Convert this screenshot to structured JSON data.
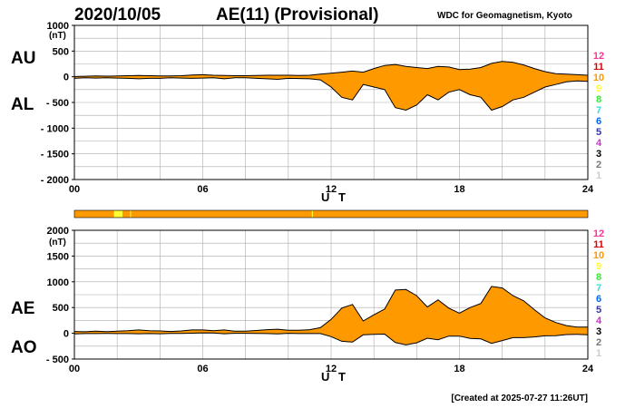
{
  "header": {
    "date": "2020/10/05",
    "title": "AE(11) (Provisional)",
    "source": "WDC for Geomagnetism, Kyoto"
  },
  "footer": {
    "created": "[Created at 2025-07-27 11:26UT]"
  },
  "colors": {
    "fill": "#ff9900",
    "line": "#000000",
    "grid": "#aaaaaa",
    "bar": "#ff9900",
    "bar_highlight": "#ffff33"
  },
  "station_scale": [
    {
      "label": "12",
      "color": "#ff3399"
    },
    {
      "label": "11",
      "color": "#dd0000"
    },
    {
      "label": "10",
      "color": "#ff9900"
    },
    {
      "label": "9",
      "color": "#ffff33"
    },
    {
      "label": "8",
      "color": "#33ee33"
    },
    {
      "label": "7",
      "color": "#33dddd"
    },
    {
      "label": "6",
      "color": "#0066ff"
    },
    {
      "label": "5",
      "color": "#3333aa"
    },
    {
      "label": "4",
      "color": "#cc33cc"
    },
    {
      "label": "3",
      "color": "#000000"
    },
    {
      "label": "2",
      "color": "#777777"
    },
    {
      "label": "1",
      "color": "#cccccc"
    }
  ],
  "chart_data": [
    {
      "type": "area",
      "upper_label": "AU",
      "lower_label": "AL",
      "unit": "(nT)",
      "xlabel": "U T",
      "xlim": [
        0,
        24
      ],
      "ylim": [
        -2000,
        1000
      ],
      "x_ticks": [
        "00",
        "06",
        "12",
        "18",
        "24"
      ],
      "y_ticks": [
        {
          "value": 1000,
          "label": "1000"
        },
        {
          "value": 500,
          "label": "500"
        },
        {
          "value": 0,
          "label": "0"
        },
        {
          "value": -500,
          "label": "- 500"
        },
        {
          "value": -1000,
          "label": "- 1000"
        },
        {
          "value": -1500,
          "label": "- 1500"
        },
        {
          "value": -2000,
          "label": "- 2000"
        }
      ],
      "grid": true,
      "series": [
        {
          "name": "AU",
          "x": [
            0,
            0.5,
            1,
            1.5,
            2,
            2.5,
            3,
            3.5,
            4,
            4.5,
            5,
            5.5,
            6,
            6.5,
            7,
            7.5,
            8,
            8.5,
            9,
            9.5,
            10,
            10.5,
            11,
            11.5,
            12,
            12.5,
            13,
            13.5,
            14,
            14.5,
            15,
            15.5,
            16,
            16.5,
            17,
            17.5,
            18,
            18.5,
            19,
            19.5,
            20,
            20.5,
            21,
            21.5,
            22,
            22.5,
            23,
            23.5,
            24
          ],
          "values": [
            5,
            10,
            15,
            12,
            15,
            20,
            25,
            20,
            15,
            15,
            20,
            35,
            40,
            30,
            25,
            20,
            20,
            25,
            30,
            30,
            30,
            25,
            30,
            50,
            70,
            90,
            110,
            90,
            160,
            220,
            240,
            200,
            180,
            160,
            200,
            190,
            140,
            150,
            180,
            260,
            300,
            280,
            230,
            160,
            100,
            60,
            50,
            40,
            30
          ]
        },
        {
          "name": "AL",
          "x": [
            0,
            0.5,
            1,
            1.5,
            2,
            2.5,
            3,
            3.5,
            4,
            4.5,
            5,
            5.5,
            6,
            6.5,
            7,
            7.5,
            8,
            8.5,
            9,
            9.5,
            10,
            10.5,
            11,
            11.5,
            12,
            12.5,
            13,
            13.5,
            14,
            14.5,
            15,
            15.5,
            16,
            16.5,
            17,
            17.5,
            18,
            18.5,
            19,
            19.5,
            20,
            20.5,
            21,
            21.5,
            22,
            22.5,
            23,
            23.5,
            24
          ],
          "values": [
            -30,
            -20,
            -25,
            -20,
            -25,
            -30,
            -40,
            -30,
            -30,
            -20,
            -25,
            -30,
            -25,
            -20,
            -40,
            -20,
            -20,
            -30,
            -40,
            -50,
            -30,
            -35,
            -40,
            -60,
            -200,
            -400,
            -450,
            -150,
            -200,
            -250,
            -600,
            -650,
            -550,
            -350,
            -450,
            -300,
            -250,
            -350,
            -400,
            -650,
            -580,
            -450,
            -400,
            -300,
            -200,
            -150,
            -100,
            -80,
            -90
          ]
        }
      ]
    },
    {
      "type": "area",
      "upper_label": "AE",
      "lower_label": "AO",
      "unit": "(nT)",
      "xlabel": "U T",
      "xlim": [
        0,
        24
      ],
      "ylim": [
        -500,
        2000
      ],
      "x_ticks": [
        "00",
        "06",
        "12",
        "18",
        "24"
      ],
      "y_ticks": [
        {
          "value": 2000,
          "label": "2000"
        },
        {
          "value": 1500,
          "label": "1500"
        },
        {
          "value": 1000,
          "label": "1000"
        },
        {
          "value": 500,
          "label": "500"
        },
        {
          "value": 0,
          "label": "0"
        },
        {
          "value": -500,
          "label": "- 500"
        }
      ],
      "grid": true,
      "series": [
        {
          "name": "AE",
          "x": [
            0,
            0.5,
            1,
            1.5,
            2,
            2.5,
            3,
            3.5,
            4,
            4.5,
            5,
            5.5,
            6,
            6.5,
            7,
            7.5,
            8,
            8.5,
            9,
            9.5,
            10,
            10.5,
            11,
            11.5,
            12,
            12.5,
            13,
            13.5,
            14,
            14.5,
            15,
            15.5,
            16,
            16.5,
            17,
            17.5,
            18,
            18.5,
            19,
            19.5,
            20,
            20.5,
            21,
            21.5,
            22,
            22.5,
            23,
            23.5,
            24
          ],
          "values": [
            35,
            30,
            40,
            32,
            40,
            50,
            65,
            50,
            45,
            35,
            45,
            65,
            65,
            50,
            65,
            40,
            40,
            55,
            70,
            80,
            60,
            60,
            70,
            110,
            270,
            490,
            560,
            240,
            360,
            470,
            840,
            850,
            730,
            510,
            650,
            490,
            390,
            500,
            580,
            910,
            880,
            730,
            630,
            460,
            300,
            210,
            150,
            120,
            120
          ]
        },
        {
          "name": "AO",
          "x": [
            0,
            0.5,
            1,
            1.5,
            2,
            2.5,
            3,
            3.5,
            4,
            4.5,
            5,
            5.5,
            6,
            6.5,
            7,
            7.5,
            8,
            8.5,
            9,
            9.5,
            10,
            10.5,
            11,
            11.5,
            12,
            12.5,
            13,
            13.5,
            14,
            14.5,
            15,
            15.5,
            16,
            16.5,
            17,
            17.5,
            18,
            18.5,
            19,
            19.5,
            20,
            20.5,
            21,
            21.5,
            22,
            22.5,
            23,
            23.5,
            24
          ],
          "values": [
            -12,
            -5,
            -5,
            -4,
            -5,
            -5,
            -8,
            -5,
            -8,
            -2,
            -2,
            2,
            8,
            5,
            -8,
            0,
            0,
            -2,
            -5,
            -10,
            0,
            -5,
            -5,
            -5,
            -65,
            -155,
            -170,
            -30,
            -20,
            -15,
            -180,
            -225,
            -185,
            -95,
            -125,
            -55,
            -55,
            -100,
            -110,
            -195,
            -140,
            -85,
            -85,
            -70,
            -50,
            -45,
            -25,
            -20,
            -30
          ]
        }
      ]
    }
  ],
  "station_bar": {
    "highlights": [
      {
        "start": 1.85,
        "end": 2.25
      },
      {
        "start": 2.6,
        "end": 2.65
      },
      {
        "start": 11.1,
        "end": 11.15
      }
    ]
  }
}
